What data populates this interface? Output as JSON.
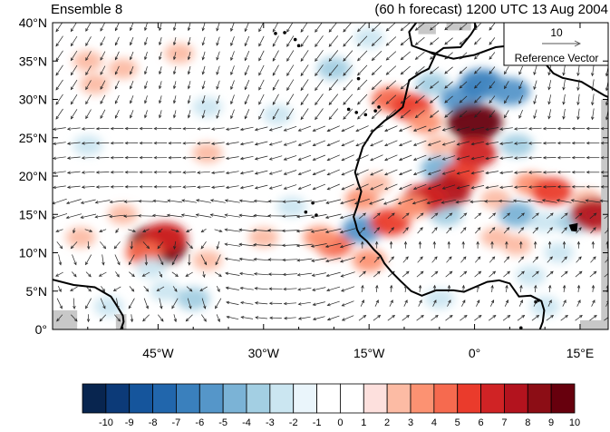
{
  "header": {
    "left_title": "Ensemble 8",
    "right_title": "(60 h forecast) 1200 UTC 13 Aug 2004"
  },
  "reference_vector": {
    "magnitude_label": "10",
    "caption": "Reference Vector"
  },
  "axes": {
    "lat_labels": [
      "40°N",
      "35°N",
      "30°N",
      "25°N",
      "20°N",
      "15°N",
      "10°N",
      "5°N",
      "0°"
    ],
    "lon_labels": [
      "45°W",
      "30°W",
      "15°W",
      "0°",
      "15°E"
    ]
  },
  "colorbar": {
    "tick_labels": [
      "-10",
      "-9",
      "-8",
      "-7",
      "-6",
      "-5",
      "-4",
      "-3",
      "-2",
      "-1",
      "0",
      "1",
      "2",
      "3",
      "4",
      "5",
      "6",
      "7",
      "8",
      "9",
      "10"
    ],
    "colors": [
      "#08254f",
      "#0c3a78",
      "#15559c",
      "#2166ac",
      "#3a80bd",
      "#5596c9",
      "#7bb3d6",
      "#a3cfe3",
      "#cbe6f1",
      "#eaf5fb",
      "#ffffff",
      "#ffffff",
      "#fde0dd",
      "#fcbba4",
      "#fc9272",
      "#f66a4f",
      "#ea3b2c",
      "#d02325",
      "#b3131e",
      "#8c0d15",
      "#67000d"
    ]
  },
  "map": {
    "anomaly_blobs": [
      {
        "lon": -45,
        "lat": 11,
        "value": 10
      },
      {
        "lon": -44,
        "lat": 12,
        "value": 6
      },
      {
        "lon": -47,
        "lat": 10,
        "value": 4
      },
      {
        "lon": -38,
        "lat": 9,
        "value": 2
      },
      {
        "lon": -52,
        "lat": 3,
        "value": -2
      },
      {
        "lon": -44,
        "lat": 5,
        "value": -2
      },
      {
        "lon": -40,
        "lat": 4,
        "value": -3
      },
      {
        "lon": -46,
        "lat": 8,
        "value": -2
      },
      {
        "lon": -50,
        "lat": 15,
        "value": 2
      },
      {
        "lon": -56,
        "lat": 12,
        "value": 2
      },
      {
        "lon": -55,
        "lat": 35,
        "value": 2
      },
      {
        "lon": -50,
        "lat": 34,
        "value": 2
      },
      {
        "lon": -54,
        "lat": 32,
        "value": 2
      },
      {
        "lon": -42,
        "lat": 36,
        "value": 2
      },
      {
        "lon": -55,
        "lat": 24,
        "value": -2
      },
      {
        "lon": -38,
        "lat": 29,
        "value": -2
      },
      {
        "lon": -28,
        "lat": 28,
        "value": -2
      },
      {
        "lon": -38,
        "lat": 23,
        "value": 2
      },
      {
        "lon": -20,
        "lat": 34,
        "value": -3
      },
      {
        "lon": -15,
        "lat": 38,
        "value": -2
      },
      {
        "lon": -26,
        "lat": 16,
        "value": -2
      },
      {
        "lon": -30,
        "lat": 12,
        "value": 2
      },
      {
        "lon": -20,
        "lat": 11,
        "value": 4
      },
      {
        "lon": -22,
        "lat": 12,
        "value": 3
      },
      {
        "lon": -16,
        "lat": 13,
        "value": -5
      },
      {
        "lon": -15,
        "lat": 9,
        "value": 3
      },
      {
        "lon": -12,
        "lat": 14,
        "value": 5
      },
      {
        "lon": -16,
        "lat": 17,
        "value": 3
      },
      {
        "lon": -14,
        "lat": 19,
        "value": 2
      },
      {
        "lon": -12,
        "lat": 30,
        "value": 4
      },
      {
        "lon": -9,
        "lat": 29,
        "value": 5
      },
      {
        "lon": -7,
        "lat": 27,
        "value": 3
      },
      {
        "lon": -5,
        "lat": 24,
        "value": 2
      },
      {
        "lon": -6,
        "lat": 32,
        "value": -3
      },
      {
        "lon": -2,
        "lat": 30,
        "value": -5
      },
      {
        "lon": 1,
        "lat": 32,
        "value": -6
      },
      {
        "lon": 5,
        "lat": 31,
        "value": -5
      },
      {
        "lon": 6,
        "lat": 24,
        "value": -3
      },
      {
        "lon": -5,
        "lat": 21,
        "value": -4
      },
      {
        "lon": -4,
        "lat": 15,
        "value": -3
      },
      {
        "lon": 0,
        "lat": 27,
        "value": 9
      },
      {
        "lon": 0,
        "lat": 23,
        "value": 6
      },
      {
        "lon": -2,
        "lat": 20,
        "value": 5
      },
      {
        "lon": -4,
        "lat": 18,
        "value": 7
      },
      {
        "lon": -7,
        "lat": 17,
        "value": 6
      },
      {
        "lon": -9,
        "lat": 16,
        "value": 3
      },
      {
        "lon": 3,
        "lat": 17,
        "value": 2
      },
      {
        "lon": 8,
        "lat": 19,
        "value": 3
      },
      {
        "lon": 11,
        "lat": 18,
        "value": 5
      },
      {
        "lon": 16,
        "lat": 17,
        "value": 2
      },
      {
        "lon": 6,
        "lat": 15,
        "value": -4
      },
      {
        "lon": 10,
        "lat": 14,
        "value": -2
      },
      {
        "lon": 14,
        "lat": 14,
        "value": -3
      },
      {
        "lon": 17,
        "lat": 15,
        "value": 7
      },
      {
        "lon": 12,
        "lat": 10,
        "value": -2
      },
      {
        "lon": 3,
        "lat": 12,
        "value": 2
      },
      {
        "lon": 6,
        "lat": 11,
        "value": 2
      },
      {
        "lon": 8,
        "lat": 7,
        "value": -2
      },
      {
        "lon": 10,
        "lat": 3,
        "value": -2
      },
      {
        "lon": -5,
        "lat": 4,
        "value": -2
      }
    ],
    "land_outline": [
      [
        -8.3,
        40
      ],
      [
        -9.3,
        38.8
      ],
      [
        -8.9,
        37
      ],
      [
        -6.5,
        36.2
      ],
      [
        -5.6,
        35.8
      ],
      [
        -5.9,
        35.2
      ],
      [
        -6.5,
        34
      ],
      [
        -7.6,
        33.5
      ],
      [
        -9.3,
        32.5
      ],
      [
        -9.8,
        30.5
      ],
      [
        -10.2,
        29
      ],
      [
        -11.5,
        28
      ],
      [
        -12.8,
        27.2
      ],
      [
        -14.5,
        25.8
      ],
      [
        -15.9,
        23.8
      ],
      [
        -16.6,
        21.7
      ],
      [
        -17,
        20.5
      ],
      [
        -16.5,
        19
      ],
      [
        -16.1,
        18
      ],
      [
        -16.7,
        16
      ],
      [
        -17.2,
        14.7
      ],
      [
        -16.9,
        13.8
      ],
      [
        -16.7,
        13
      ],
      [
        -16.3,
        12.3
      ],
      [
        -15.3,
        11.5
      ],
      [
        -14.3,
        10.4
      ],
      [
        -13.4,
        9.6
      ],
      [
        -12.8,
        8.6
      ],
      [
        -11.8,
        7.5
      ],
      [
        -10.5,
        6.3
      ],
      [
        -9,
        5
      ],
      [
        -7.5,
        4.4
      ],
      [
        -5.5,
        5.1
      ],
      [
        -3,
        5.1
      ],
      [
        -1.5,
        4.9
      ],
      [
        0,
        5.5
      ],
      [
        1.8,
        6.2
      ],
      [
        3.5,
        6.4
      ],
      [
        5,
        6
      ],
      [
        6.3,
        4.3
      ],
      [
        8,
        4.4
      ],
      [
        9.5,
        3.7
      ],
      [
        9.9,
        2.5
      ],
      [
        9.7,
        1
      ],
      [
        9.3,
        0
      ]
    ],
    "land_far_east": [
      [
        9.3,
        0
      ],
      [
        19,
        0
      ],
      [
        19,
        40
      ],
      [
        -8.3,
        40
      ]
    ],
    "south_america_outline": [
      [
        -60,
        6.5
      ],
      [
        -57,
        5.8
      ],
      [
        -54,
        5.5
      ],
      [
        -51.7,
        4.3
      ],
      [
        -51,
        3.3
      ],
      [
        -50,
        1.8
      ],
      [
        -49.9,
        1
      ],
      [
        -50.3,
        0
      ]
    ],
    "south_america_fill": [
      [
        -60,
        6.5
      ],
      [
        -57,
        5.8
      ],
      [
        -54,
        5.5
      ],
      [
        -51.7,
        4.3
      ],
      [
        -51,
        3.3
      ],
      [
        -50,
        1.8
      ],
      [
        -49.9,
        1
      ],
      [
        -50.3,
        0
      ],
      [
        -60,
        0
      ]
    ],
    "med_coast": [
      [
        -5.5,
        35.9
      ],
      [
        -3,
        35.3
      ],
      [
        0,
        35.8
      ],
      [
        3,
        36.8
      ],
      [
        6,
        37.1
      ],
      [
        9.5,
        37.2
      ],
      [
        10.5,
        36.5
      ],
      [
        10.2,
        34.5
      ],
      [
        11.2,
        33.4
      ],
      [
        12.5,
        32.8
      ],
      [
        15.2,
        32.3
      ],
      [
        18.5,
        30.5
      ],
      [
        19,
        30.3
      ]
    ],
    "spain_coast": [
      [
        -6.5,
        36.2
      ],
      [
        -5.5,
        36
      ],
      [
        -4.4,
        36.7
      ],
      [
        -2,
        36.8
      ],
      [
        -0.5,
        38.5
      ],
      [
        0.2,
        39.5
      ],
      [
        0,
        40
      ]
    ],
    "sardinia": [
      [
        8.4,
        39.2
      ],
      [
        9.7,
        39.2
      ],
      [
        9.8,
        40
      ],
      [
        8.3,
        40
      ]
    ],
    "sicily_like": [
      [
        12.5,
        38.1
      ],
      [
        15.6,
        38.3
      ],
      [
        15.1,
        36.7
      ],
      [
        12.5,
        37.6
      ]
    ],
    "lake_chad": [
      [
        13.5,
        13.6
      ],
      [
        14.6,
        13.8
      ],
      [
        14.5,
        12.8
      ],
      [
        13.8,
        12.9
      ]
    ],
    "islands": [
      [
        -24,
        15.3
      ],
      [
        -23,
        16.5
      ],
      [
        -22.5,
        14.9
      ],
      [
        -16.8,
        28.3
      ],
      [
        -15.5,
        28
      ],
      [
        -14.1,
        28.5
      ],
      [
        -13.6,
        29
      ],
      [
        -17.9,
        28.7
      ],
      [
        -16.5,
        32.7
      ],
      [
        -25.5,
        37.8
      ],
      [
        -28.3,
        38.6
      ],
      [
        -27,
        38.7
      ],
      [
        -25,
        37
      ],
      [
        8.7,
        3.6
      ],
      [
        9.1,
        3.8
      ],
      [
        6.6,
        0.2
      ]
    ],
    "gray_regions": [
      [
        [
          -60,
          0
        ],
        [
          -56.5,
          0
        ],
        [
          -56.5,
          2.5
        ],
        [
          -60,
          2.5
        ]
      ],
      [
        [
          -51,
          0
        ],
        [
          -49.5,
          0
        ],
        [
          -49.5,
          2
        ],
        [
          -51,
          2
        ]
      ],
      [
        [
          -8,
          38.5
        ],
        [
          -5.5,
          38.5
        ],
        [
          -5.5,
          40
        ],
        [
          -8,
          40
        ]
      ],
      [
        [
          -4,
          39
        ],
        [
          -0.5,
          39
        ],
        [
          -0.5,
          40
        ],
        [
          -4,
          40
        ]
      ],
      [
        [
          9,
          38.3
        ],
        [
          19,
          38.3
        ],
        [
          19,
          40
        ],
        [
          9,
          40
        ]
      ],
      [
        [
          18,
          0
        ],
        [
          19,
          0
        ],
        [
          19,
          30
        ],
        [
          18,
          30
        ]
      ],
      [
        [
          15,
          0
        ],
        [
          19,
          0
        ],
        [
          19,
          1.2
        ],
        [
          15,
          1.2
        ]
      ]
    ]
  }
}
